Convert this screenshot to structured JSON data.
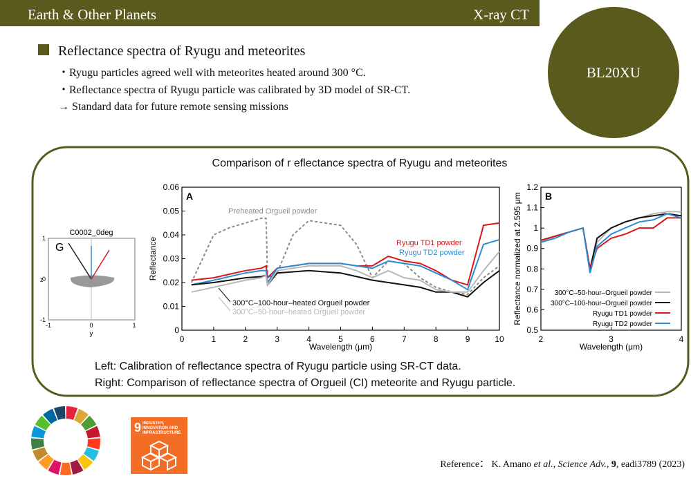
{
  "header": {
    "title": "Earth & Other Planets",
    "category": "X-ray CT"
  },
  "badge": "BL20XU",
  "section": {
    "title": "Reflectance spectra of Ryugu and meteorites",
    "bullets": [
      "・Ryugu particles agreed well with meteorites heated around 300 °C.",
      "・Reflectance spectra of Ryugu particle was calibrated by 3D model of SR-CT.",
      "→ Standard data for future remote sensing missions"
    ]
  },
  "figure": {
    "title": "Comparison of  r eflectance spectra of Ryugu and meteorites",
    "captions": [
      "Left: Calibration of reflectance spectra of Ryugu particle using SR-CT data.",
      "Right: Comparison of reflectance spectra of Orgueil (CI) meteorite and Ryugu particle."
    ],
    "panel_g": {
      "label": "G",
      "title": "C0002_0deg",
      "xlabel": "y",
      "ylabel": "z",
      "xticks": [
        -1,
        0,
        1
      ],
      "yticks": [
        1,
        0,
        -1
      ]
    }
  },
  "chart_data": [
    {
      "type": "line",
      "panel": "A",
      "xlabel": "Wavelength (μm)",
      "ylabel": "Reflectance",
      "legend": "inline",
      "xlim": [
        0,
        10
      ],
      "ylim": [
        0,
        0.06
      ],
      "xticks": [
        0,
        1,
        2,
        3,
        4,
        5,
        6,
        7,
        8,
        9,
        10
      ],
      "yticks": [
        0,
        0.01,
        0.02,
        0.03,
        0.04,
        0.05,
        0.06
      ],
      "x": [
        0.3,
        1,
        1.5,
        2,
        2.5,
        2.65,
        2.7,
        3,
        3.5,
        4,
        4.5,
        5,
        5.5,
        6,
        6.5,
        7,
        7.5,
        8,
        8.5,
        9,
        9.5,
        10
      ],
      "series": [
        {
          "name": "Preheated Orgueil powder",
          "color": "#8a8a8a",
          "dashed": true,
          "values": [
            0.02,
            0.04,
            0.043,
            0.045,
            0.047,
            0.047,
            0.022,
            0.024,
            0.04,
            0.046,
            0.045,
            0.044,
            0.036,
            0.022,
            0.029,
            0.028,
            0.022,
            0.018,
            0.016,
            0.015,
            0.022,
            0.027
          ]
        },
        {
          "name": "Ryugu TD1 powder",
          "color": "#d7191c",
          "values": [
            0.021,
            0.022,
            0.0235,
            0.025,
            0.026,
            0.027,
            0.022,
            0.026,
            0.027,
            0.028,
            0.028,
            0.028,
            0.027,
            0.027,
            0.031,
            0.029,
            0.028,
            0.025,
            0.021,
            0.019,
            0.044,
            0.045
          ]
        },
        {
          "name": "Ryugu TD2 powder",
          "color": "#2b8cd6",
          "values": [
            0.019,
            0.021,
            0.0225,
            0.024,
            0.025,
            0.025,
            0.02,
            0.026,
            0.027,
            0.028,
            0.028,
            0.028,
            0.027,
            0.026,
            0.029,
            0.028,
            0.027,
            0.024,
            0.021,
            0.017,
            0.036,
            0.038
          ]
        },
        {
          "name": "300°C–100-hour–heated Orgueil powder",
          "color": "#111111",
          "values": [
            0.019,
            0.02,
            0.021,
            0.022,
            0.0225,
            0.023,
            0.019,
            0.024,
            0.0245,
            0.025,
            0.0245,
            0.024,
            0.0225,
            0.021,
            0.02,
            0.019,
            0.018,
            0.016,
            0.016,
            0.014,
            0.02,
            0.025
          ]
        },
        {
          "name": "300°C–50-hour–heated Orgueil powder",
          "color": "#b8b8b8",
          "values": [
            0.016,
            0.018,
            0.0195,
            0.021,
            0.022,
            0.023,
            0.019,
            0.025,
            0.026,
            0.027,
            0.027,
            0.027,
            0.025,
            0.022,
            0.025,
            0.022,
            0.021,
            0.017,
            0.016,
            0.016,
            0.025,
            0.033
          ]
        }
      ]
    },
    {
      "type": "line",
      "panel": "B",
      "xlabel": "Wavelength (μm)",
      "ylabel": "Reflectance normalized at 2.595 μm",
      "legend": "lower right",
      "xlim": [
        2,
        4
      ],
      "ylim": [
        0.5,
        1.2
      ],
      "xticks": [
        2,
        3,
        4
      ],
      "yticks": [
        0.5,
        0.6,
        0.7,
        0.8,
        0.9,
        1,
        1.1,
        1.2
      ],
      "x": [
        2,
        2.2,
        2.4,
        2.6,
        2.7,
        2.8,
        3,
        3.2,
        3.4,
        3.6,
        3.8,
        4
      ],
      "series": [
        {
          "name": "300°C–50-hour–Orgueil powder",
          "color": "#b8b8b8",
          "values": [
            0.93,
            0.96,
            0.98,
            1.0,
            0.79,
            0.93,
            1.0,
            1.03,
            1.05,
            1.07,
            1.08,
            1.08
          ]
        },
        {
          "name": "300°C–100-hour–Orgueil powder",
          "color": "#111111",
          "values": [
            0.94,
            0.96,
            0.98,
            1.0,
            0.8,
            0.95,
            1.0,
            1.03,
            1.05,
            1.06,
            1.07,
            1.06
          ]
        },
        {
          "name": "Ryugu TD1 powder",
          "color": "#d7191c",
          "values": [
            0.94,
            0.96,
            0.98,
            1.0,
            0.8,
            0.9,
            0.95,
            0.97,
            1.0,
            1.0,
            1.05,
            1.05
          ]
        },
        {
          "name": "Ryugu TD2 powder",
          "color": "#2b8cd6",
          "values": [
            0.93,
            0.95,
            0.98,
            1.0,
            0.78,
            0.91,
            0.97,
            1.0,
            1.03,
            1.04,
            1.07,
            1.05
          ]
        }
      ]
    }
  ],
  "sdg": {
    "number": "9",
    "label": "INDUSTRY, INNOVATION AND INFRASTRUCTURE"
  },
  "reference": [
    "Reference： K. Amano ",
    "et al.",
    ", ",
    "Science Adv.",
    ", ",
    "9",
    ", eadi3789 (2023)"
  ]
}
